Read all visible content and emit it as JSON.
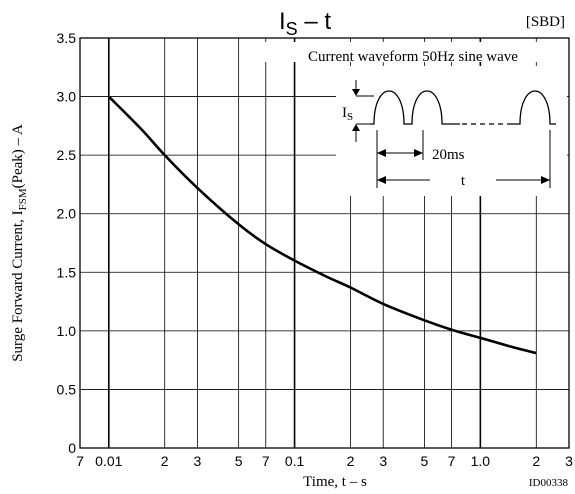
{
  "chart_data": {
    "type": "line",
    "title_main": "I",
    "title_sub": "S",
    "title_rest": " – t",
    "tag": "[SBD]",
    "ylabel_prefix": "Surge Forward Current, I",
    "ylabel_sub": "FSM",
    "ylabel_suffix": "(Peak) – A",
    "xlabel": "Time, t  –  s",
    "x_scale": "log",
    "xlim": [
      0.007,
      3
    ],
    "ylim": [
      0,
      3.5
    ],
    "grid": true,
    "y_ticks": [
      {
        "value": 0,
        "label": "0"
      },
      {
        "value": 0.5,
        "label": "0.5"
      },
      {
        "value": 1.0,
        "label": "1.0"
      },
      {
        "value": 1.5,
        "label": "1.5"
      },
      {
        "value": 2.0,
        "label": "2.0"
      },
      {
        "value": 2.5,
        "label": "2.5"
      },
      {
        "value": 3.0,
        "label": "3.0"
      },
      {
        "value": 3.5,
        "label": "3.5"
      }
    ],
    "x_ticks": [
      {
        "value": 0.007,
        "label": "7",
        "major": false
      },
      {
        "value": 0.01,
        "label": "0.01",
        "major": true
      },
      {
        "value": 0.02,
        "label": "2",
        "major": false
      },
      {
        "value": 0.03,
        "label": "3",
        "major": false
      },
      {
        "value": 0.05,
        "label": "5",
        "major": false
      },
      {
        "value": 0.07,
        "label": "7",
        "major": false
      },
      {
        "value": 0.1,
        "label": "0.1",
        "major": true
      },
      {
        "value": 0.2,
        "label": "2",
        "major": false
      },
      {
        "value": 0.3,
        "label": "3",
        "major": false
      },
      {
        "value": 0.5,
        "label": "5",
        "major": false
      },
      {
        "value": 0.7,
        "label": "7",
        "major": false
      },
      {
        "value": 1.0,
        "label": "1.0",
        "major": true
      },
      {
        "value": 2.0,
        "label": "2",
        "major": false
      },
      {
        "value": 3.0,
        "label": "3",
        "major": false
      }
    ],
    "series": [
      {
        "x": [
          0.01,
          0.015,
          0.02,
          0.03,
          0.05,
          0.07,
          0.1,
          0.15,
          0.2,
          0.3,
          0.5,
          0.7,
          1.0,
          1.5,
          2.0
        ],
        "y": [
          3.0,
          2.72,
          2.5,
          2.22,
          1.91,
          1.74,
          1.6,
          1.46,
          1.37,
          1.23,
          1.09,
          1.01,
          0.94,
          0.86,
          0.81
        ]
      }
    ],
    "inset": {
      "caption": "Current waveform 50Hz sine wave",
      "is_main": "I",
      "is_sub": "S",
      "period_label": "20ms",
      "t_label": "t"
    },
    "footnote": "ID00338"
  }
}
